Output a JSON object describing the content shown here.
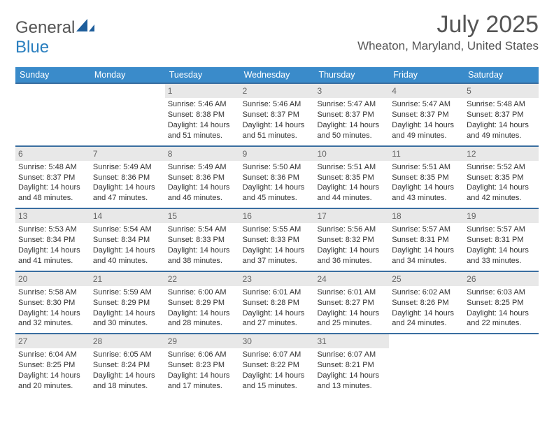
{
  "brand": {
    "general": "General",
    "blue": "Blue"
  },
  "title": {
    "month": "July 2025",
    "location": "Wheaton, Maryland, United States"
  },
  "colors": {
    "header_bg": "#3a8bca",
    "week_border": "#3a6ea0",
    "daynum_bg": "#e8e8e8",
    "text_gray": "#555"
  },
  "dow": [
    "Sunday",
    "Monday",
    "Tuesday",
    "Wednesday",
    "Thursday",
    "Friday",
    "Saturday"
  ],
  "weeks": [
    [
      {
        "n": "",
        "sr": "",
        "ss": "",
        "dl1": "",
        "dl2": ""
      },
      {
        "n": "",
        "sr": "",
        "ss": "",
        "dl1": "",
        "dl2": ""
      },
      {
        "n": "1",
        "sr": "Sunrise: 5:46 AM",
        "ss": "Sunset: 8:38 PM",
        "dl1": "Daylight: 14 hours",
        "dl2": "and 51 minutes."
      },
      {
        "n": "2",
        "sr": "Sunrise: 5:46 AM",
        "ss": "Sunset: 8:37 PM",
        "dl1": "Daylight: 14 hours",
        "dl2": "and 51 minutes."
      },
      {
        "n": "3",
        "sr": "Sunrise: 5:47 AM",
        "ss": "Sunset: 8:37 PM",
        "dl1": "Daylight: 14 hours",
        "dl2": "and 50 minutes."
      },
      {
        "n": "4",
        "sr": "Sunrise: 5:47 AM",
        "ss": "Sunset: 8:37 PM",
        "dl1": "Daylight: 14 hours",
        "dl2": "and 49 minutes."
      },
      {
        "n": "5",
        "sr": "Sunrise: 5:48 AM",
        "ss": "Sunset: 8:37 PM",
        "dl1": "Daylight: 14 hours",
        "dl2": "and 49 minutes."
      }
    ],
    [
      {
        "n": "6",
        "sr": "Sunrise: 5:48 AM",
        "ss": "Sunset: 8:37 PM",
        "dl1": "Daylight: 14 hours",
        "dl2": "and 48 minutes."
      },
      {
        "n": "7",
        "sr": "Sunrise: 5:49 AM",
        "ss": "Sunset: 8:36 PM",
        "dl1": "Daylight: 14 hours",
        "dl2": "and 47 minutes."
      },
      {
        "n": "8",
        "sr": "Sunrise: 5:49 AM",
        "ss": "Sunset: 8:36 PM",
        "dl1": "Daylight: 14 hours",
        "dl2": "and 46 minutes."
      },
      {
        "n": "9",
        "sr": "Sunrise: 5:50 AM",
        "ss": "Sunset: 8:36 PM",
        "dl1": "Daylight: 14 hours",
        "dl2": "and 45 minutes."
      },
      {
        "n": "10",
        "sr": "Sunrise: 5:51 AM",
        "ss": "Sunset: 8:35 PM",
        "dl1": "Daylight: 14 hours",
        "dl2": "and 44 minutes."
      },
      {
        "n": "11",
        "sr": "Sunrise: 5:51 AM",
        "ss": "Sunset: 8:35 PM",
        "dl1": "Daylight: 14 hours",
        "dl2": "and 43 minutes."
      },
      {
        "n": "12",
        "sr": "Sunrise: 5:52 AM",
        "ss": "Sunset: 8:35 PM",
        "dl1": "Daylight: 14 hours",
        "dl2": "and 42 minutes."
      }
    ],
    [
      {
        "n": "13",
        "sr": "Sunrise: 5:53 AM",
        "ss": "Sunset: 8:34 PM",
        "dl1": "Daylight: 14 hours",
        "dl2": "and 41 minutes."
      },
      {
        "n": "14",
        "sr": "Sunrise: 5:54 AM",
        "ss": "Sunset: 8:34 PM",
        "dl1": "Daylight: 14 hours",
        "dl2": "and 40 minutes."
      },
      {
        "n": "15",
        "sr": "Sunrise: 5:54 AM",
        "ss": "Sunset: 8:33 PM",
        "dl1": "Daylight: 14 hours",
        "dl2": "and 38 minutes."
      },
      {
        "n": "16",
        "sr": "Sunrise: 5:55 AM",
        "ss": "Sunset: 8:33 PM",
        "dl1": "Daylight: 14 hours",
        "dl2": "and 37 minutes."
      },
      {
        "n": "17",
        "sr": "Sunrise: 5:56 AM",
        "ss": "Sunset: 8:32 PM",
        "dl1": "Daylight: 14 hours",
        "dl2": "and 36 minutes."
      },
      {
        "n": "18",
        "sr": "Sunrise: 5:57 AM",
        "ss": "Sunset: 8:31 PM",
        "dl1": "Daylight: 14 hours",
        "dl2": "and 34 minutes."
      },
      {
        "n": "19",
        "sr": "Sunrise: 5:57 AM",
        "ss": "Sunset: 8:31 PM",
        "dl1": "Daylight: 14 hours",
        "dl2": "and 33 minutes."
      }
    ],
    [
      {
        "n": "20",
        "sr": "Sunrise: 5:58 AM",
        "ss": "Sunset: 8:30 PM",
        "dl1": "Daylight: 14 hours",
        "dl2": "and 32 minutes."
      },
      {
        "n": "21",
        "sr": "Sunrise: 5:59 AM",
        "ss": "Sunset: 8:29 PM",
        "dl1": "Daylight: 14 hours",
        "dl2": "and 30 minutes."
      },
      {
        "n": "22",
        "sr": "Sunrise: 6:00 AM",
        "ss": "Sunset: 8:29 PM",
        "dl1": "Daylight: 14 hours",
        "dl2": "and 28 minutes."
      },
      {
        "n": "23",
        "sr": "Sunrise: 6:01 AM",
        "ss": "Sunset: 8:28 PM",
        "dl1": "Daylight: 14 hours",
        "dl2": "and 27 minutes."
      },
      {
        "n": "24",
        "sr": "Sunrise: 6:01 AM",
        "ss": "Sunset: 8:27 PM",
        "dl1": "Daylight: 14 hours",
        "dl2": "and 25 minutes."
      },
      {
        "n": "25",
        "sr": "Sunrise: 6:02 AM",
        "ss": "Sunset: 8:26 PM",
        "dl1": "Daylight: 14 hours",
        "dl2": "and 24 minutes."
      },
      {
        "n": "26",
        "sr": "Sunrise: 6:03 AM",
        "ss": "Sunset: 8:25 PM",
        "dl1": "Daylight: 14 hours",
        "dl2": "and 22 minutes."
      }
    ],
    [
      {
        "n": "27",
        "sr": "Sunrise: 6:04 AM",
        "ss": "Sunset: 8:25 PM",
        "dl1": "Daylight: 14 hours",
        "dl2": "and 20 minutes."
      },
      {
        "n": "28",
        "sr": "Sunrise: 6:05 AM",
        "ss": "Sunset: 8:24 PM",
        "dl1": "Daylight: 14 hours",
        "dl2": "and 18 minutes."
      },
      {
        "n": "29",
        "sr": "Sunrise: 6:06 AM",
        "ss": "Sunset: 8:23 PM",
        "dl1": "Daylight: 14 hours",
        "dl2": "and 17 minutes."
      },
      {
        "n": "30",
        "sr": "Sunrise: 6:07 AM",
        "ss": "Sunset: 8:22 PM",
        "dl1": "Daylight: 14 hours",
        "dl2": "and 15 minutes."
      },
      {
        "n": "31",
        "sr": "Sunrise: 6:07 AM",
        "ss": "Sunset: 8:21 PM",
        "dl1": "Daylight: 14 hours",
        "dl2": "and 13 minutes."
      },
      {
        "n": "",
        "sr": "",
        "ss": "",
        "dl1": "",
        "dl2": ""
      },
      {
        "n": "",
        "sr": "",
        "ss": "",
        "dl1": "",
        "dl2": ""
      }
    ]
  ]
}
